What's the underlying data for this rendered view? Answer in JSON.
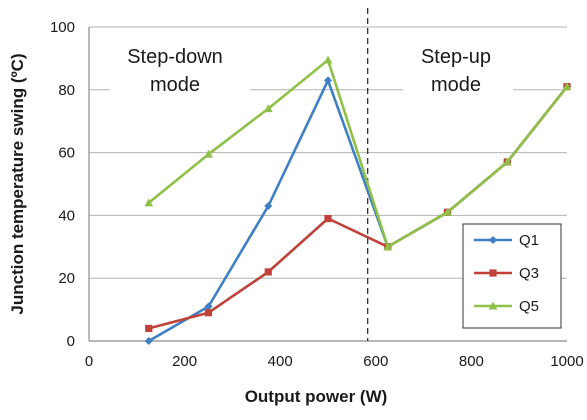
{
  "chart_data": {
    "type": "line",
    "xlabel": "Output power (W)",
    "ylabel": "Junction temperature swing (ºC)",
    "xlim": [
      0,
      1000
    ],
    "ylim": [
      0,
      100
    ],
    "x_ticks": [
      0,
      200,
      400,
      600,
      800,
      1000
    ],
    "y_ticks": [
      0,
      20,
      40,
      60,
      80,
      100
    ],
    "grid": "horizontal",
    "legend_position": "bottom-right",
    "divider_x": 583,
    "annotations": [
      {
        "text_lines": [
          "Step-down",
          "mode"
        ],
        "region": "left of divider"
      },
      {
        "text_lines": [
          "Step-up",
          "mode"
        ],
        "region": "right of divider"
      }
    ],
    "x": [
      125,
      250,
      375,
      500,
      625,
      750,
      875,
      1000
    ],
    "series": [
      {
        "name": "Q1",
        "color": "#3f7fc4",
        "marker": "diamond",
        "values": [
          0,
          11,
          43,
          83,
          30,
          41,
          57,
          81
        ]
      },
      {
        "name": "Q3",
        "color": "#c0403a",
        "marker": "square",
        "values": [
          4,
          9,
          22,
          39,
          30,
          41,
          57,
          81
        ]
      },
      {
        "name": "Q5",
        "color": "#8fc149",
        "marker": "triangle",
        "values": [
          44,
          59.5,
          74,
          89.5,
          30,
          41,
          57,
          81
        ]
      }
    ]
  }
}
